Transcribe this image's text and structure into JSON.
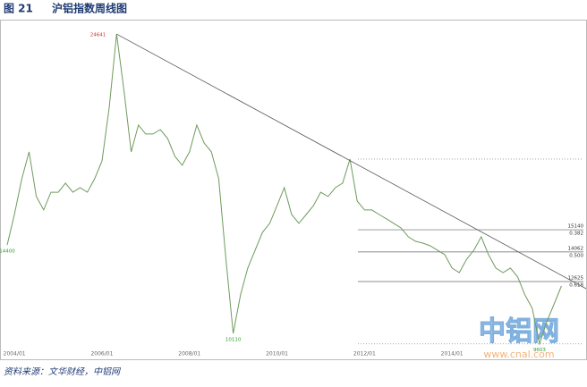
{
  "header": {
    "figure": "图 21",
    "title": "沪铝指数周线图"
  },
  "chart_data": {
    "type": "line",
    "categories": [
      null,
      "2004/01",
      null,
      null,
      null,
      null,
      null,
      null,
      null,
      null,
      null,
      null,
      null,
      "2006/01",
      null,
      null,
      null,
      null,
      null,
      null,
      null,
      null,
      null,
      null,
      null,
      "2008/01",
      null,
      null,
      null,
      null,
      null,
      null,
      null,
      null,
      null,
      null,
      null,
      "2010/01",
      null,
      null,
      null,
      null,
      null,
      null,
      null,
      null,
      null,
      null,
      null,
      "2012/01",
      null,
      null,
      null,
      null,
      null,
      null,
      null,
      null,
      null,
      null,
      null,
      "2014/01",
      null,
      null,
      null,
      null,
      null,
      null,
      null,
      null,
      null,
      null,
      null,
      null,
      null,
      null,
      null
    ],
    "values": [
      14400,
      15880,
      17600,
      18920,
      16750,
      16100,
      16960,
      16960,
      17400,
      16960,
      17180,
      16960,
      17620,
      18480,
      21090,
      24641,
      21950,
      18920,
      20220,
      19790,
      19790,
      20000,
      19570,
      18700,
      18270,
      18920,
      20220,
      19350,
      18920,
      17620,
      13710,
      10110,
      11980,
      13280,
      14150,
      15010,
      15450,
      16310,
      17180,
      15880,
      15450,
      15880,
      16310,
      16960,
      16750,
      17180,
      17400,
      18570,
      16530,
      16100,
      16100,
      15880,
      15670,
      15450,
      15230,
      14800,
      14580,
      14490,
      14360,
      14150,
      13930,
      13280,
      13060,
      13710,
      14150,
      14800,
      13930,
      13280,
      13060,
      13280,
      12850,
      11980,
      11330,
      9603,
      10680,
      11540,
      12410
    ],
    "color": "#6f9a5e",
    "ylim": [
      9285,
      24990
    ],
    "annotations": [
      14400,
      24641,
      10110,
      9603
    ],
    "trendline": [
      24641,
      12280
    ],
    "fibonacci": [
      {
        "level": 15140,
        "ratio": 0.382
      },
      {
        "level": 14062,
        "ratio": 0.5,
        "ratio_label": "0.500"
      },
      {
        "level": 12625,
        "ratio": 0.618
      }
    ],
    "range_lines": [
      18570,
      9600
    ]
  },
  "source": "资料来源：文华财经，中铝网",
  "watermark": {
    "logo": "中铝网",
    "url": "www.cnal.com"
  }
}
